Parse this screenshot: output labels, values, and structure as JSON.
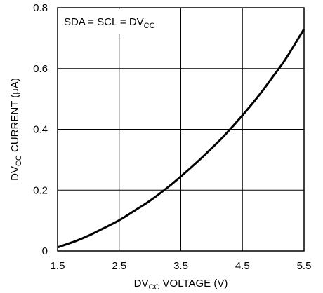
{
  "chart_data": {
    "type": "line",
    "title": "",
    "annotation": {
      "text": "SDA = SCL = DV",
      "sub": "CC"
    },
    "xlabel": {
      "prefix": "DV",
      "sub": "CC",
      "suffix": " VOLTAGE (V)"
    },
    "ylabel": {
      "prefix": "DV",
      "sub": "CC",
      "suffix": " CURRENT (µA)"
    },
    "xlim": [
      1.5,
      5.5
    ],
    "ylim": [
      0,
      0.8
    ],
    "xticks": [
      1.5,
      2.5,
      3.5,
      4.5,
      5.5
    ],
    "xtick_labels": [
      "1.5",
      "2.5",
      "3.5",
      "4.5",
      "5.5"
    ],
    "yticks": [
      0,
      0.2,
      0.4,
      0.6,
      0.8
    ],
    "ytick_labels": [
      "0",
      "0.2",
      "0.4",
      "0.6",
      "0.8"
    ],
    "grid": true,
    "series": [
      {
        "x": [
          1.5,
          1.8,
          2.0,
          2.2,
          2.5,
          2.8,
          3.0,
          3.3,
          3.5,
          3.8,
          4.0,
          4.2,
          4.5,
          4.8,
          5.0,
          5.2,
          5.5
        ],
        "y": [
          0.012,
          0.033,
          0.05,
          0.07,
          0.101,
          0.139,
          0.165,
          0.211,
          0.245,
          0.299,
          0.338,
          0.378,
          0.446,
          0.52,
          0.575,
          0.631,
          0.73
        ]
      }
    ],
    "line_color": "#000000"
  }
}
